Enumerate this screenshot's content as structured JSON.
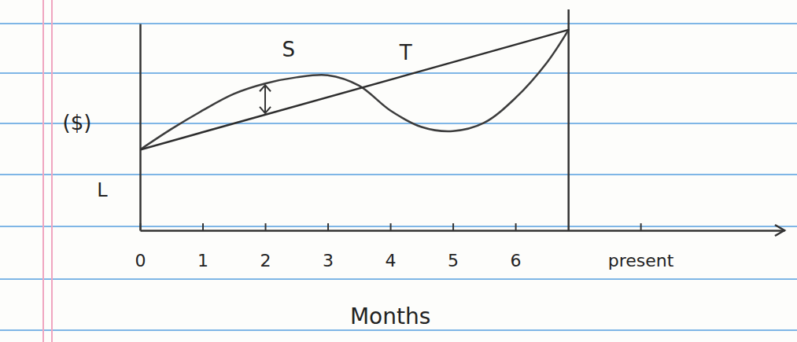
{
  "chart_data": {
    "type": "line",
    "x_label": "Months",
    "y_label": "($)",
    "xlim": [
      0,
      10.3
    ],
    "ylim": [
      0,
      10
    ],
    "xticks": [
      0,
      1,
      2,
      3,
      4,
      5,
      6,
      {
        "value": 8,
        "label": "present"
      }
    ],
    "yticks": [],
    "tick_labels": "x",
    "grid": false,
    "annotations": [
      "L"
    ],
    "series": [
      {
        "name": "S",
        "color": "#3c3c3c",
        "x": [
          0,
          0.5,
          1,
          1.5,
          2,
          2.5,
          3,
          3.5,
          4,
          4.5,
          5,
          5.5,
          6,
          6.5,
          6.85
        ],
        "values": [
          3.9,
          4.9,
          5.8,
          6.6,
          7.1,
          7.4,
          7.5,
          7.0,
          5.8,
          5.0,
          4.8,
          5.2,
          6.4,
          8.1,
          9.7
        ]
      },
      {
        "name": "T",
        "color": "#2e2e2e",
        "x": [
          0,
          6.85
        ],
        "values": [
          3.9,
          9.7
        ]
      }
    ]
  }
}
